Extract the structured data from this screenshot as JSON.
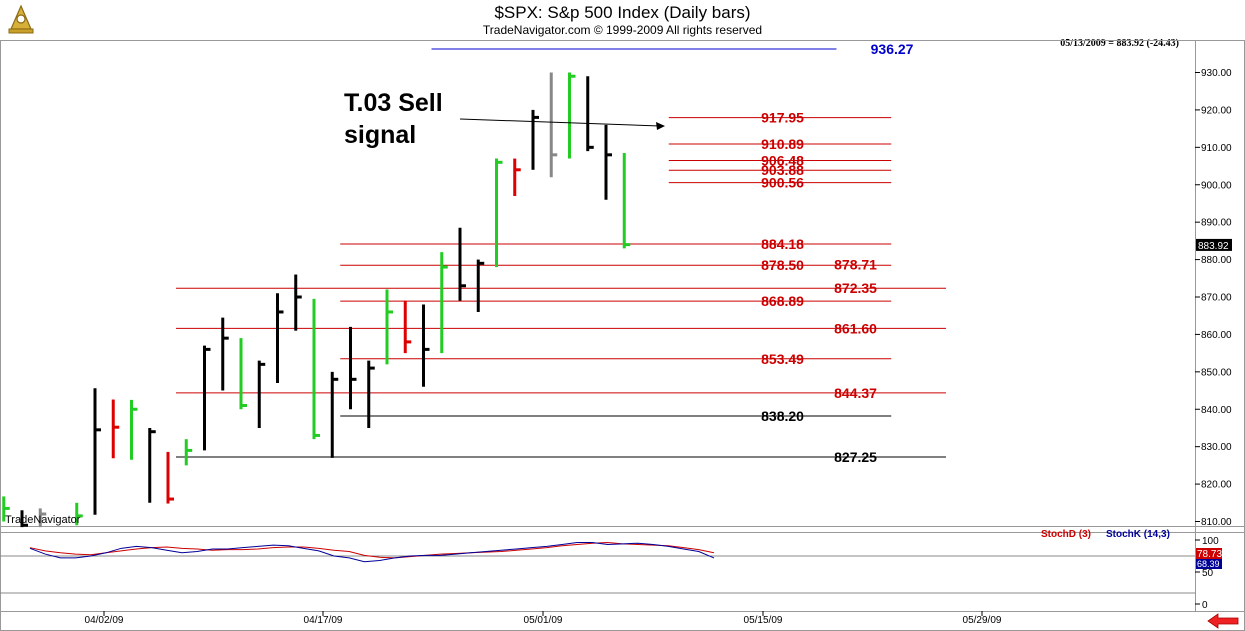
{
  "header": {
    "title": "$SPX:  S&p 500 Index  (Daily bars)",
    "subtitle": "TradeNavigator.com © 1999-2009 All rights reserved",
    "quote": "05/13/2009 = 883.92 (-24.43)",
    "watermark": "TradeNavigator"
  },
  "annotation": {
    "line1": "T.03 Sell",
    "line2": "signal"
  },
  "indicator": {
    "stochd_label": "StochD (3)",
    "stochk_label": "StochK (14,3)",
    "stochd_value": "78.73",
    "stochk_value": "68.39",
    "stochd_color": "#cc0000",
    "stochk_color": "#000099",
    "y_ticks": [
      "100",
      "50",
      "0"
    ]
  },
  "colors": {
    "up": "#22cc22",
    "down": "#dd0000",
    "neutral": "#000000",
    "gray": "#888888"
  },
  "chart_data": {
    "type": "ohlc",
    "x_ticks": [
      "04/02/09",
      "04/17/09",
      "05/01/09",
      "05/15/09",
      "05/29/09"
    ],
    "y_ticks": [
      "930.00",
      "920.00",
      "910.00",
      "900.00",
      "890.00",
      "880.00",
      "870.00",
      "860.00",
      "850.00",
      "840.00",
      "830.00",
      "820.00",
      "810.00"
    ],
    "ylim": [
      808,
      937
    ],
    "last_price_label": "883.92",
    "bars": [
      {
        "x": -5,
        "h": 816.7,
        "l": 810.0,
        "c": 813.5,
        "color": "up"
      },
      {
        "x": -4,
        "h": 813.0,
        "l": 808.5,
        "c": 809.0,
        "color": "neutral"
      },
      {
        "x": -3,
        "h": 813.5,
        "l": 808.5,
        "c": 812.0,
        "color": "gray"
      },
      {
        "x": -1,
        "h": 815.0,
        "l": 809.0,
        "c": 811.5,
        "color": "up"
      },
      {
        "x": 0,
        "h": 845.6,
        "l": 811.8,
        "c": 834.5,
        "color": "neutral"
      },
      {
        "x": 1,
        "h": 842.6,
        "l": 826.9,
        "c": 835.2,
        "color": "down"
      },
      {
        "x": 2,
        "h": 842.5,
        "l": 826.5,
        "c": 840.0,
        "color": "up"
      },
      {
        "x": 3,
        "h": 835.0,
        "l": 815.0,
        "c": 834.0,
        "color": "neutral"
      },
      {
        "x": 4,
        "h": 828.6,
        "l": 814.8,
        "c": 816.0,
        "color": "down"
      },
      {
        "x": 5,
        "h": 832.0,
        "l": 825.0,
        "c": 829.0,
        "color": "up"
      },
      {
        "x": 6,
        "h": 857.0,
        "l": 829.0,
        "c": 856.0,
        "color": "neutral"
      },
      {
        "x": 7,
        "h": 864.5,
        "l": 845.0,
        "c": 859.0,
        "color": "neutral"
      },
      {
        "x": 8,
        "h": 859.0,
        "l": 840.0,
        "c": 841.0,
        "color": "up"
      },
      {
        "x": 9,
        "h": 853.0,
        "l": 835.0,
        "c": 852.0,
        "color": "neutral"
      },
      {
        "x": 10,
        "h": 871.0,
        "l": 847.0,
        "c": 866.0,
        "color": "neutral"
      },
      {
        "x": 11,
        "h": 876.0,
        "l": 861.0,
        "c": 870.0,
        "color": "neutral"
      },
      {
        "x": 12,
        "h": 869.5,
        "l": 832.0,
        "c": 833.0,
        "color": "up"
      },
      {
        "x": 13,
        "h": 850.0,
        "l": 827.0,
        "c": 848.0,
        "color": "neutral"
      },
      {
        "x": 14,
        "h": 862.0,
        "l": 840.0,
        "c": 848.0,
        "color": "neutral"
      },
      {
        "x": 15,
        "h": 853.0,
        "l": 835.0,
        "c": 851.0,
        "color": "neutral"
      },
      {
        "x": 16,
        "h": 872.0,
        "l": 852.0,
        "c": 866.0,
        "color": "up"
      },
      {
        "x": 17,
        "h": 869.0,
        "l": 855.0,
        "c": 858.0,
        "color": "down"
      },
      {
        "x": 18,
        "h": 868.0,
        "l": 846.0,
        "c": 856.0,
        "color": "neutral"
      },
      {
        "x": 19,
        "h": 882.0,
        "l": 855.0,
        "c": 878.0,
        "color": "up"
      },
      {
        "x": 20,
        "h": 888.5,
        "l": 869.0,
        "c": 873.0,
        "color": "neutral"
      },
      {
        "x": 21,
        "h": 880.0,
        "l": 866.0,
        "c": 879.0,
        "color": "neutral"
      },
      {
        "x": 22,
        "h": 907.0,
        "l": 878.0,
        "c": 906.0,
        "color": "up"
      },
      {
        "x": 23,
        "h": 907.0,
        "l": 897.0,
        "c": 904.0,
        "color": "down"
      },
      {
        "x": 24,
        "h": 920.0,
        "l": 904.0,
        "c": 918.0,
        "color": "neutral"
      },
      {
        "x": 25,
        "h": 930.0,
        "l": 902.0,
        "c": 908.0,
        "color": "gray"
      },
      {
        "x": 26,
        "h": 930.0,
        "l": 907.0,
        "c": 929.0,
        "color": "up"
      },
      {
        "x": 27,
        "h": 929.0,
        "l": 909.0,
        "c": 910.0,
        "color": "neutral"
      },
      {
        "x": 28,
        "h": 916.0,
        "l": 896.0,
        "c": 908.0,
        "color": "neutral"
      },
      {
        "x": 29,
        "h": 908.5,
        "l": 883.0,
        "c": 884.0,
        "color": "up"
      }
    ],
    "levels": [
      {
        "value": "917.95",
        "price": 917.95,
        "color": "#cc0000",
        "x0": 31,
        "x1": 45,
        "lx": 36.5
      },
      {
        "value": "910.89",
        "price": 910.89,
        "color": "#cc0000",
        "x0": 31,
        "x1": 45,
        "lx": 36.5
      },
      {
        "value": "906.48",
        "price": 906.48,
        "color": "#cc0000",
        "x0": 31,
        "x1": 45,
        "lx": 36.5
      },
      {
        "value": "903.88",
        "price": 903.88,
        "color": "#cc0000",
        "x0": 31,
        "x1": 45,
        "lx": 36.5
      },
      {
        "value": "900.56",
        "price": 900.56,
        "color": "#cc0000",
        "x0": 31,
        "x1": 45,
        "lx": 36.5
      },
      {
        "value": "884.18",
        "price": 884.18,
        "color": "#cc0000",
        "x0": 13,
        "x1": 45,
        "lx": 36.5
      },
      {
        "value": "878.50",
        "price": 878.5,
        "color": "#cc0000",
        "x0": 13,
        "x1": 45,
        "lx": 36.5
      },
      {
        "value": "878.71",
        "price": 878.71,
        "color": "#cc0000",
        "x0": 45,
        "x1": 45,
        "lx": 40.5
      },
      {
        "value": "872.35",
        "price": 872.35,
        "color": "#cc0000",
        "x0": 4,
        "x1": 48,
        "lx": 40.5
      },
      {
        "value": "868.89",
        "price": 868.89,
        "color": "#cc0000",
        "x0": 13,
        "x1": 45,
        "lx": 36.5
      },
      {
        "value": "861.60",
        "price": 861.6,
        "color": "#cc0000",
        "x0": 4,
        "x1": 48,
        "lx": 40.5
      },
      {
        "value": "853.49",
        "price": 853.49,
        "color": "#cc0000",
        "x0": 13,
        "x1": 45,
        "lx": 36.5
      },
      {
        "value": "844.37",
        "price": 844.37,
        "color": "#cc0000",
        "x0": 4,
        "x1": 48,
        "lx": 40.5
      },
      {
        "value": "838.20",
        "price": 838.2,
        "color": "#000000",
        "x0": 13,
        "x1": 45,
        "lx": 36.5
      },
      {
        "value": "827.25",
        "price": 827.25,
        "color": "#000000",
        "x0": 4,
        "x1": 48,
        "lx": 40.5
      },
      {
        "value": "936.27",
        "price": 936.27,
        "color": "#0000cc",
        "x0": 18,
        "x1": 42,
        "lx": 42.5
      }
    ],
    "stoch_d": [
      88,
      83,
      80,
      78,
      77,
      80,
      83,
      86,
      88,
      89,
      87,
      86,
      84,
      85,
      85,
      86,
      88,
      89,
      89,
      87,
      84,
      82,
      76,
      73,
      72,
      74,
      76,
      78,
      79,
      80,
      81,
      82,
      84,
      86,
      88,
      91,
      93,
      95,
      96,
      94,
      93,
      92,
      91,
      88,
      85,
      80
    ],
    "stoch_k": [
      87,
      78,
      72,
      72,
      75,
      80,
      87,
      90,
      88,
      84,
      80,
      82,
      86,
      86,
      88,
      90,
      92,
      91,
      87,
      83,
      75,
      72,
      66,
      68,
      72,
      75,
      76,
      76,
      78,
      80,
      82,
      84,
      86,
      88,
      90,
      93,
      96,
      96,
      93,
      94,
      95,
      93,
      90,
      86,
      82,
      72
    ]
  }
}
